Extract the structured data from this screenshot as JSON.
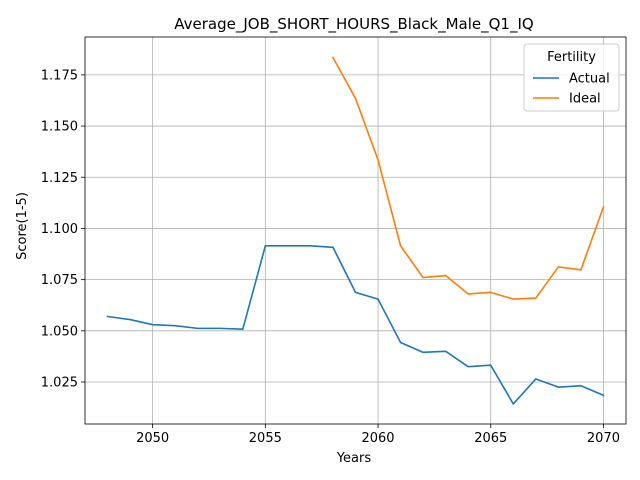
{
  "chart_data": {
    "type": "line",
    "title": "Average_JOB_SHORT_HOURS_Black_Male_Q1_IQ",
    "xlabel": "Years",
    "ylabel": "Score(1-5)",
    "xlim": [
      2047,
      2071
    ],
    "ylim": [
      1.0045,
      1.1935
    ],
    "xticks": [
      2050,
      2055,
      2060,
      2065,
      2070
    ],
    "yticks": [
      1.025,
      1.05,
      1.075,
      1.1,
      1.125,
      1.15,
      1.175
    ],
    "ytick_labels": [
      "1.025",
      "1.050",
      "1.075",
      "1.100",
      "1.125",
      "1.150",
      "1.175"
    ],
    "grid": true,
    "legend": {
      "title": "Fertility",
      "placement": "top-right"
    },
    "series": [
      {
        "name": "Actual",
        "color": "#1f77b4",
        "x": [
          2048,
          2049,
          2050,
          2051,
          2052,
          2053,
          2054,
          2055,
          2056,
          2057,
          2058,
          2059,
          2060,
          2061,
          2062,
          2063,
          2064,
          2065,
          2066,
          2067,
          2068,
          2069,
          2070
        ],
        "y": [
          1.057,
          1.0555,
          1.053,
          1.0525,
          1.0512,
          1.0512,
          1.0508,
          1.0915,
          1.0915,
          1.0915,
          1.0908,
          1.0688,
          1.0655,
          1.0443,
          1.0395,
          1.04,
          1.0325,
          1.0332,
          1.0143,
          1.0265,
          1.0225,
          1.0232,
          1.0185
        ]
      },
      {
        "name": "Ideal",
        "color": "#ff7f0e",
        "x": [
          2058,
          2059,
          2060,
          2061,
          2062,
          2063,
          2064,
          2065,
          2066,
          2067,
          2068,
          2069,
          2070
        ],
        "y": [
          1.1835,
          1.1635,
          1.1335,
          1.0915,
          1.076,
          1.077,
          1.068,
          1.0688,
          1.0655,
          1.066,
          1.0812,
          1.0798,
          1.1105
        ]
      }
    ]
  }
}
